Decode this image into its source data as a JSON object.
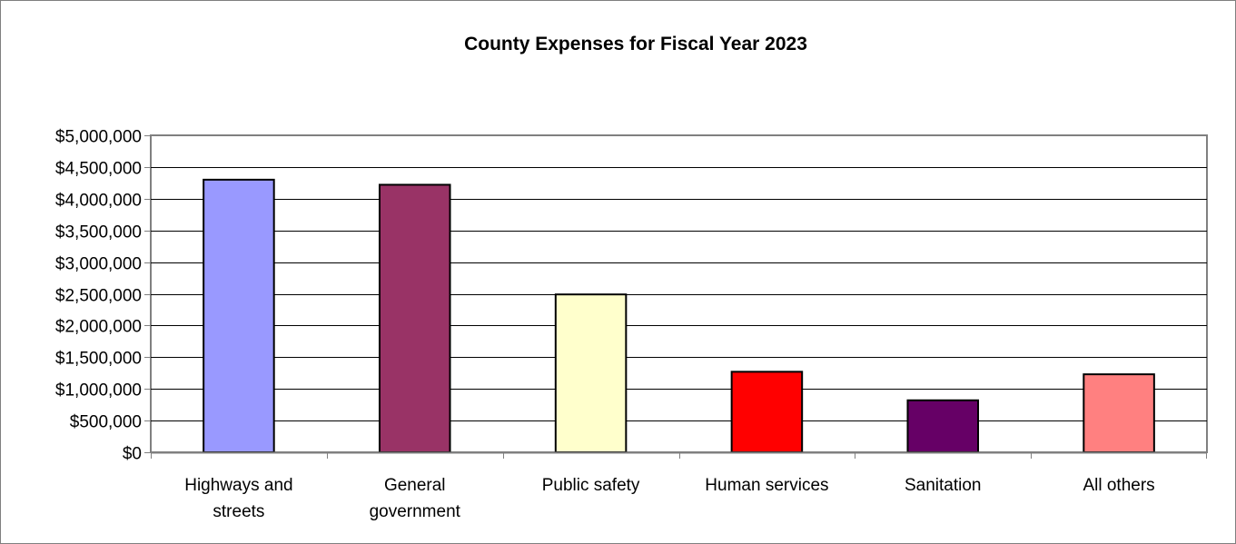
{
  "chart_data": {
    "type": "bar",
    "title": "County Expenses for Fiscal Year 2023",
    "xlabel": "",
    "ylabel": "",
    "ylim": [
      0,
      5000000
    ],
    "y_ticks": [
      "$0",
      "$500,000",
      "$1,000,000",
      "$1,500,000",
      "$2,000,000",
      "$2,500,000",
      "$3,000,000",
      "$3,500,000",
      "$4,000,000",
      "$4,500,000",
      "$5,000,000"
    ],
    "y_tick_values": [
      0,
      500000,
      1000000,
      1500000,
      2000000,
      2500000,
      3000000,
      3500000,
      4000000,
      4500000,
      5000000
    ],
    "categories": [
      [
        "Highways and",
        "streets"
      ],
      [
        "General",
        "government"
      ],
      [
        "Public safety"
      ],
      [
        "Human services"
      ],
      [
        "Sanitation"
      ],
      [
        "All others"
      ]
    ],
    "values": [
      4300000,
      4220000,
      2490000,
      1270000,
      820000,
      1230000
    ],
    "bar_colors": [
      "#9999ff",
      "#993366",
      "#ffffcc",
      "#ff0000",
      "#660066",
      "#ff8080"
    ],
    "grid": true,
    "legend": "none"
  }
}
